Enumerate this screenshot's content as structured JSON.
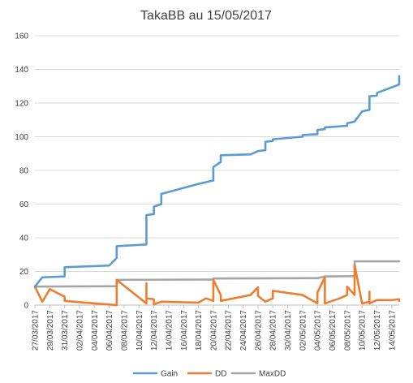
{
  "chart_data": {
    "type": "line",
    "title": "TakaBB au 15/05/2017",
    "xlabel": "",
    "ylabel": "",
    "ylim": [
      0,
      160
    ],
    "yticks": [
      0,
      20,
      40,
      60,
      80,
      100,
      120,
      140,
      160
    ],
    "xlim": [
      "2017-03-27",
      "2017-05-15"
    ],
    "x_tick_labels": [
      "27/03/2017",
      "29/03/2017",
      "31/03/2017",
      "02/04/2017",
      "04/04/2017",
      "06/04/2017",
      "08/04/2017",
      "10/04/2017",
      "12/04/2017",
      "14/04/2017",
      "16/04/2017",
      "18/04/2017",
      "20/04/2017",
      "22/04/2017",
      "24/04/2017",
      "26/04/2017",
      "28/04/2017",
      "30/04/2017",
      "02/05/2017",
      "04/05/2017",
      "06/05/2017",
      "08/05/2017",
      "10/05/2017",
      "12/05/2017",
      "14/05/2017"
    ],
    "grid": "horizontal",
    "legend_position": "bottom",
    "series": [
      {
        "name": "Gain",
        "color": "#5B9BD5",
        "points": [
          [
            "2017-03-27",
            11
          ],
          [
            "2017-03-28",
            16.5
          ],
          [
            "2017-03-31",
            17
          ],
          [
            "2017-03-31",
            22.5
          ],
          [
            "2017-04-06",
            23.5
          ],
          [
            "2017-04-07",
            28
          ],
          [
            "2017-04-07",
            35
          ],
          [
            "2017-04-11",
            36
          ],
          [
            "2017-04-11",
            53.5
          ],
          [
            "2017-04-12",
            54
          ],
          [
            "2017-04-12",
            58.5
          ],
          [
            "2017-04-13",
            60
          ],
          [
            "2017-04-13",
            66
          ],
          [
            "2017-04-18",
            72
          ],
          [
            "2017-04-19",
            73
          ],
          [
            "2017-04-20",
            74
          ],
          [
            "2017-04-20",
            82
          ],
          [
            "2017-04-21",
            85
          ],
          [
            "2017-04-21",
            89
          ],
          [
            "2017-04-25",
            89.5
          ],
          [
            "2017-04-26",
            91.5
          ],
          [
            "2017-04-27",
            92
          ],
          [
            "2017-04-27",
            97
          ],
          [
            "2017-04-28",
            97.5
          ],
          [
            "2017-04-28",
            98.5
          ],
          [
            "2017-05-02",
            100
          ],
          [
            "2017-05-02",
            101
          ],
          [
            "2017-05-04",
            101.5
          ],
          [
            "2017-05-04",
            104
          ],
          [
            "2017-05-05",
            104.5
          ],
          [
            "2017-05-05",
            105.5
          ],
          [
            "2017-05-08",
            106.5
          ],
          [
            "2017-05-08",
            108
          ],
          [
            "2017-05-09",
            109
          ],
          [
            "2017-05-10",
            115
          ],
          [
            "2017-05-11",
            116
          ],
          [
            "2017-05-11",
            124
          ],
          [
            "2017-05-12",
            124.5
          ],
          [
            "2017-05-12",
            126
          ],
          [
            "2017-05-15",
            131
          ],
          [
            "2017-05-15",
            136
          ]
        ]
      },
      {
        "name": "DD",
        "color": "#ED7D31",
        "points": [
          [
            "2017-03-27",
            11
          ],
          [
            "2017-03-28",
            2
          ],
          [
            "2017-03-29",
            9.5
          ],
          [
            "2017-03-31",
            5
          ],
          [
            "2017-03-31",
            2.5
          ],
          [
            "2017-04-04",
            1
          ],
          [
            "2017-04-07",
            0
          ],
          [
            "2017-04-07",
            15
          ],
          [
            "2017-04-11",
            1
          ],
          [
            "2017-04-11",
            13
          ],
          [
            "2017-04-11",
            4
          ],
          [
            "2017-04-12",
            3.5
          ],
          [
            "2017-04-12",
            0.5
          ],
          [
            "2017-04-13",
            2
          ],
          [
            "2017-04-18",
            1.5
          ],
          [
            "2017-04-19",
            4
          ],
          [
            "2017-04-20",
            2.5
          ],
          [
            "2017-04-20",
            15
          ],
          [
            "2017-04-21",
            6
          ],
          [
            "2017-04-21",
            2.5
          ],
          [
            "2017-04-25",
            6
          ],
          [
            "2017-04-26",
            10.5
          ],
          [
            "2017-04-26",
            5.5
          ],
          [
            "2017-04-27",
            2
          ],
          [
            "2017-04-28",
            4
          ],
          [
            "2017-04-28",
            8.5
          ],
          [
            "2017-05-02",
            6
          ],
          [
            "2017-05-04",
            1
          ],
          [
            "2017-05-04",
            7.5
          ],
          [
            "2017-05-05",
            16.5
          ],
          [
            "2017-05-05",
            1
          ],
          [
            "2017-05-07",
            4
          ],
          [
            "2017-05-08",
            6
          ],
          [
            "2017-05-08",
            11
          ],
          [
            "2017-05-09",
            6
          ],
          [
            "2017-05-09",
            24
          ],
          [
            "2017-05-10",
            1
          ],
          [
            "2017-05-11",
            2
          ],
          [
            "2017-05-11",
            8
          ],
          [
            "2017-05-11",
            1
          ],
          [
            "2017-05-12",
            3
          ],
          [
            "2017-05-14",
            3
          ],
          [
            "2017-05-15",
            3.5
          ],
          [
            "2017-05-15",
            2.5
          ]
        ]
      },
      {
        "name": "MaxDD",
        "color": "#A5A5A5",
        "points": [
          [
            "2017-03-27",
            11
          ],
          [
            "2017-04-07",
            11.2
          ],
          [
            "2017-04-07",
            15
          ],
          [
            "2017-04-20",
            15.2
          ],
          [
            "2017-04-20",
            15.8
          ],
          [
            "2017-05-04",
            16
          ],
          [
            "2017-05-05",
            17
          ],
          [
            "2017-05-09",
            17.2
          ],
          [
            "2017-05-09",
            26
          ],
          [
            "2017-05-15",
            26
          ]
        ]
      }
    ]
  }
}
